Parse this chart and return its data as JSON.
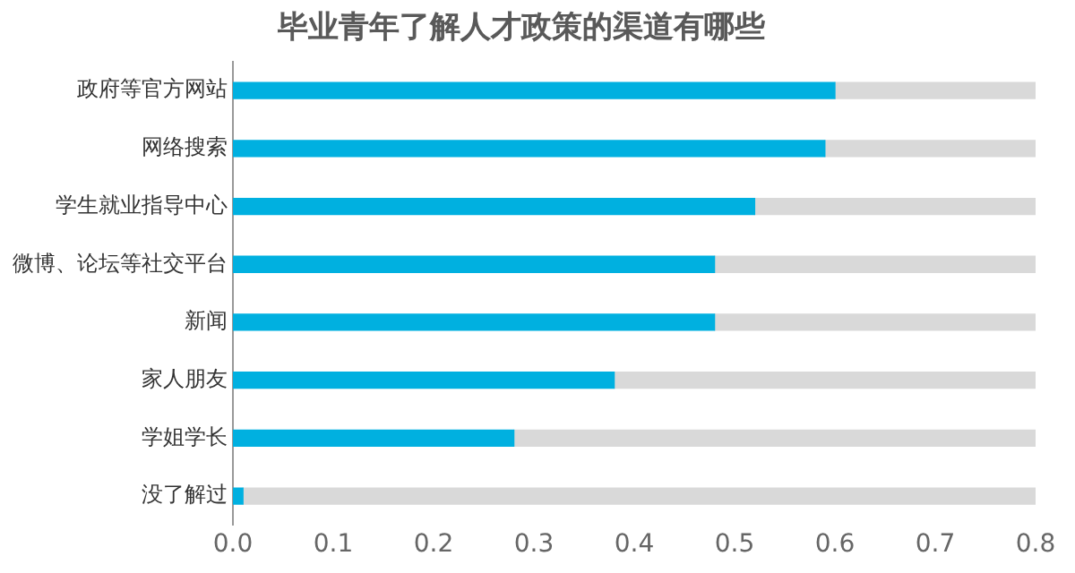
{
  "chart_data": {
    "type": "bar",
    "orientation": "horizontal",
    "title": "毕业青年了解人才政策的渠道有哪些",
    "categories": [
      "政府等官方网站",
      "网络搜索",
      "学生就业指导中心",
      "微博、论坛等社交平台",
      "新闻",
      "家人朋友",
      "学姐学长",
      "没了解过"
    ],
    "series": [
      {
        "color": "#00b0e0",
        "values": [
          0.6,
          0.59,
          0.52,
          0.48,
          0.48,
          0.38,
          0.28,
          0.01
        ]
      },
      {
        "color": "#d9d9d9",
        "values": [
          0.2,
          0.21,
          0.28,
          0.32,
          0.32,
          0.42,
          0.52,
          0.79
        ]
      }
    ],
    "stacked": true,
    "xlim": [
      0,
      0.8
    ],
    "xticks": [
      {
        "value": 0,
        "label": "0.0"
      },
      0.1,
      0.2,
      0.3,
      0.4,
      0.5,
      0.6,
      0.7,
      0.8
    ],
    "grid": false,
    "legend": false
  }
}
